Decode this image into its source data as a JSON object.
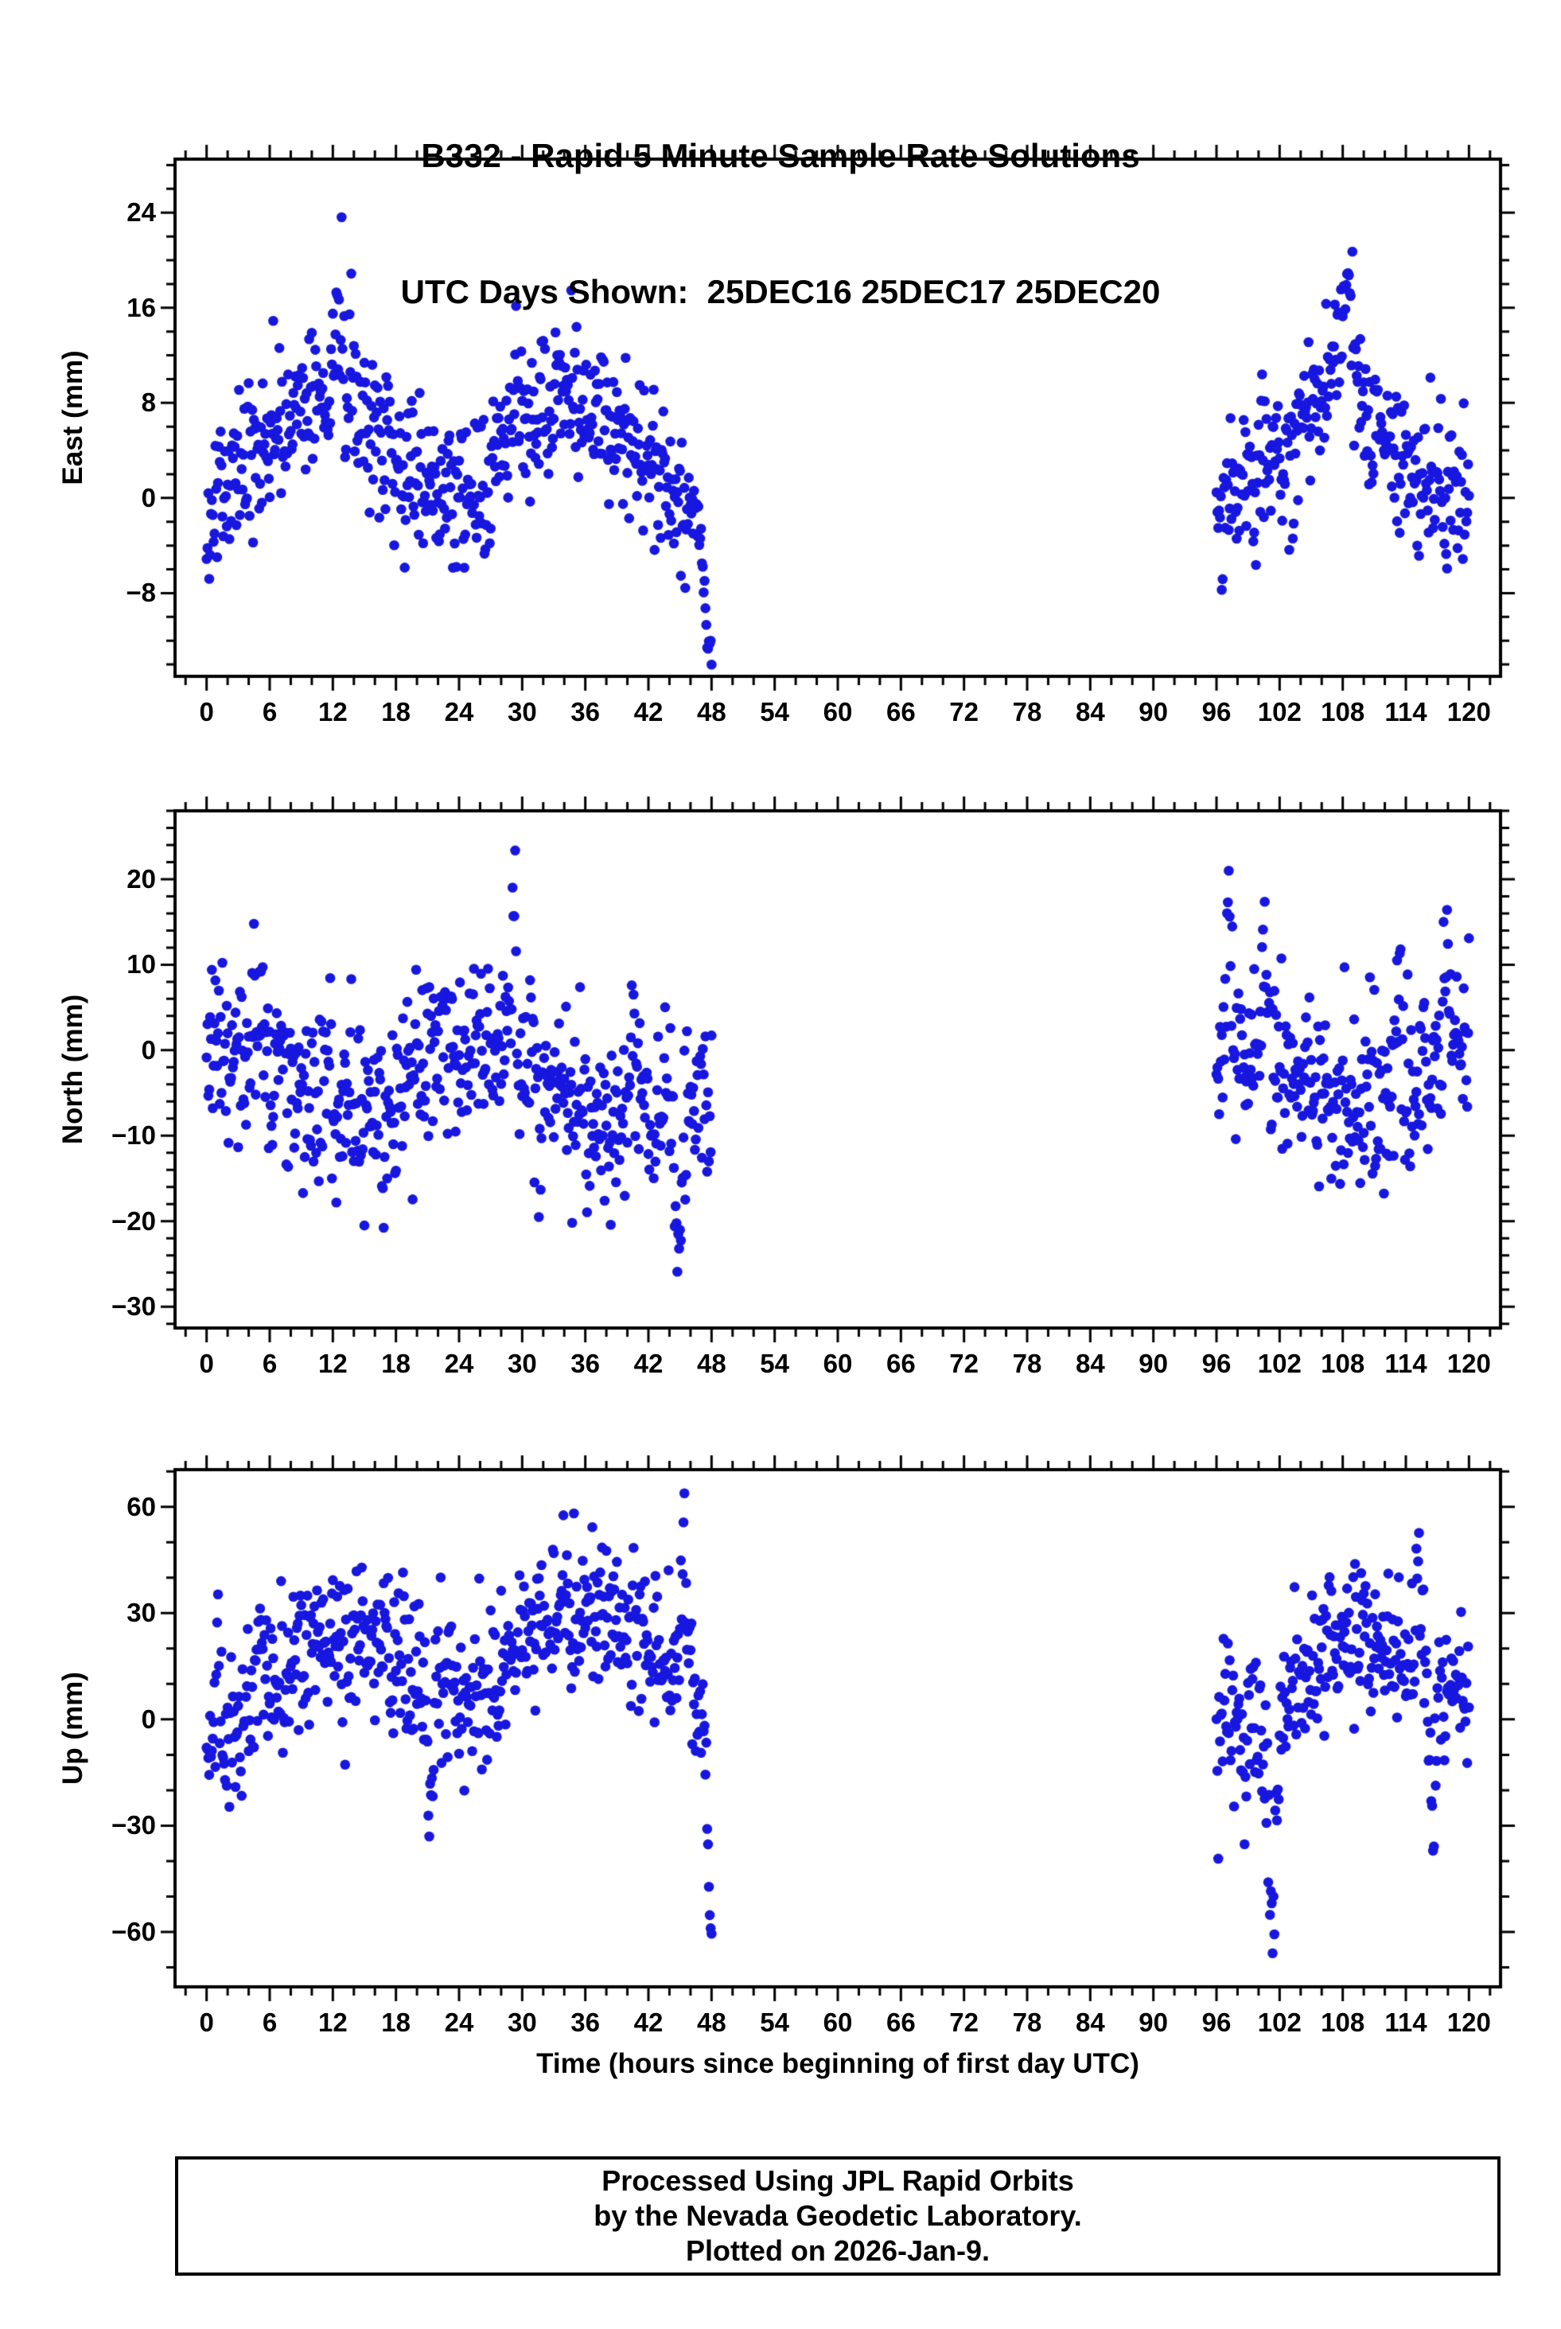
{
  "station": "B332",
  "footer": {
    "lines": [
      "Processed Using JPL Rapid Orbits",
      "by the Nevada Geodetic Laboratory.",
      "Plotted on 2026-Jan-9."
    ]
  },
  "chart_data": {
    "type": "scatter",
    "title": "B332 - Rapid 5 Minute Sample Rate Solutions",
    "subtitle": "UTC Days Shown:  25DEC16 25DEC17 25DEC20",
    "utc_days": [
      "25DEC16",
      "25DEC17",
      "25DEC20"
    ],
    "xlabel": "Time (hours since beginning of first day UTC)",
    "x_range": [
      -3,
      123
    ],
    "x_major_ticks": [
      0,
      6,
      12,
      18,
      24,
      30,
      36,
      42,
      48,
      54,
      60,
      66,
      72,
      78,
      84,
      90,
      96,
      102,
      108,
      114,
      120
    ],
    "x_minor_step": 2,
    "sample_interval_hours": 0.0833333,
    "segments": [
      [
        0,
        48.05
      ],
      [
        96,
        120
      ]
    ],
    "marker": {
      "shape": "circle",
      "radius_px": 6.3,
      "color": "#1717e0"
    },
    "grid": false,
    "legend": false,
    "panels": [
      {
        "id": "east",
        "ylabel": "East (mm)",
        "y_range": [
          -15,
          28.5
        ],
        "y_minor_step": 2,
        "y_major_ticks": [
          {
            "v": -8,
            "label": "−8"
          },
          {
            "v": 0,
            "label": "0"
          },
          {
            "v": 8,
            "label": "8"
          },
          {
            "v": 16,
            "label": "16"
          },
          {
            "v": 24,
            "label": "24"
          }
        ],
        "gen": {
          "seed": 11,
          "mean": 2.8,
          "amp24": 4.2,
          "phase24": 5,
          "amp_slow": 2.0,
          "period_slow": 96,
          "phase_slow": 0.0,
          "sigma": 3.4,
          "bumps": [
            {
              "c": 1.5,
              "w": 0.4,
              "a": 8
            },
            {
              "c": 12.4,
              "w": 0.5,
              "a": 9
            },
            {
              "c": 29.5,
              "w": 0.4,
              "a": 7
            },
            {
              "c": 103.0,
              "w": 0.8,
              "a": -5
            },
            {
              "c": 108.2,
              "w": 1.1,
              "a": 10
            }
          ],
          "ramps": [
            {
              "t0": 46.4,
              "t1": 48.05,
              "from": 1,
              "to": -15,
              "sigma": 1.3
            }
          ]
        }
      },
      {
        "id": "north",
        "ylabel": "North (mm)",
        "y_range": [
          -32.5,
          28
        ],
        "y_minor_step": 2,
        "y_major_ticks": [
          {
            "v": -30,
            "label": "−30"
          },
          {
            "v": -20,
            "label": "−20"
          },
          {
            "v": -10,
            "label": "−10"
          },
          {
            "v": 0,
            "label": "0"
          },
          {
            "v": 10,
            "label": "10"
          },
          {
            "v": 20,
            "label": "20"
          }
        ],
        "gen": {
          "seed": 22,
          "mean": -5.5,
          "amp24": 3.5,
          "phase24": -4,
          "amp_slow": 2.5,
          "period_slow": 96,
          "phase_slow": 0.5,
          "sigma": 5.2,
          "bumps": [
            {
              "c": 4.8,
              "w": 0.7,
              "a": 11
            },
            {
              "c": 16.8,
              "w": 0.3,
              "a": -12
            },
            {
              "c": 29.2,
              "w": 0.25,
              "a": 24
            },
            {
              "c": 40.6,
              "w": 0.4,
              "a": 16
            },
            {
              "c": 44.9,
              "w": 0.45,
              "a": -21
            },
            {
              "c": 97.1,
              "w": 0.3,
              "a": 24
            },
            {
              "c": 100.5,
              "w": 0.5,
              "a": 14
            },
            {
              "c": 113.5,
              "w": 0.4,
              "a": 14
            },
            {
              "c": 117.8,
              "w": 0.5,
              "a": 15
            }
          ],
          "ramps": []
        }
      },
      {
        "id": "up",
        "ylabel": "Up (mm)",
        "y_range": [
          -75.5,
          70.5
        ],
        "y_minor_step": 10,
        "y_major_ticks": [
          {
            "v": -60,
            "label": "−60"
          },
          {
            "v": -30,
            "label": "−30"
          },
          {
            "v": 0,
            "label": "0"
          },
          {
            "v": 30,
            "label": "30"
          },
          {
            "v": 60,
            "label": "60"
          }
        ],
        "gen": {
          "seed": 33,
          "mean": 11,
          "amp24": 11,
          "phase24": 6,
          "amp_slow": 10,
          "period_slow": 96,
          "phase_slow": -0.8,
          "sigma": 11,
          "bumps": [
            {
              "c": 1.1,
              "w": 0.25,
              "a": 42
            },
            {
              "c": 5.0,
              "w": 0.4,
              "a": 30
            },
            {
              "c": 21.2,
              "w": 0.4,
              "a": -38
            },
            {
              "c": 45.4,
              "w": 0.35,
              "a": 48
            },
            {
              "c": 101.3,
              "w": 0.6,
              "a": -62
            },
            {
              "c": 115.2,
              "w": 0.3,
              "a": 50
            },
            {
              "c": 116.6,
              "w": 0.35,
              "a": -60
            }
          ],
          "ramps": [
            {
              "t0": 47.0,
              "t1": 48.05,
              "from": 20,
              "to": -70,
              "sigma": 6
            }
          ]
        }
      }
    ]
  }
}
